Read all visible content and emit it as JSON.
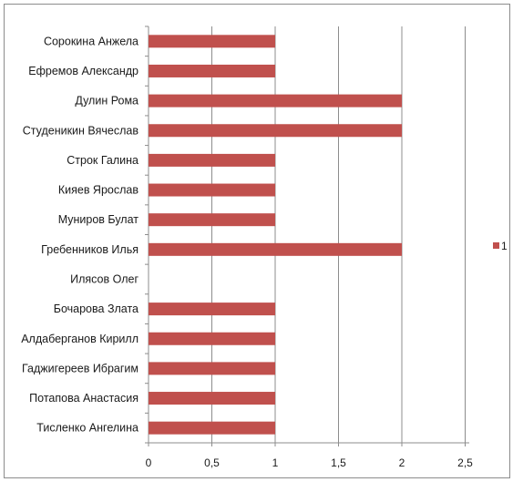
{
  "title_fragment": "",
  "chart_data": {
    "type": "bar",
    "orientation": "horizontal",
    "categories": [
      "Сорокина Анжела",
      "Ефремов Александр",
      "Дулин Рома",
      "Студеникин Вячеслав",
      "Строк Галина",
      "Кияев Ярослав",
      "Муниров Булат",
      "Гребенников Илья",
      "Илясов Олег",
      "Бочарова Злата",
      "Алдаберганов Кирилл",
      "Гаджигереев Ибрагим",
      "Потапова Анастасия",
      "Тисленко Ангелина"
    ],
    "series": [
      {
        "name": "1",
        "values": [
          1,
          1,
          2,
          2,
          1,
          1,
          1,
          2,
          0,
          1,
          1,
          1,
          1,
          1
        ],
        "color": "#c0504d"
      }
    ],
    "x_ticks": [
      "0",
      "0,5",
      "1",
      "1,5",
      "2",
      "2,5"
    ],
    "xlim": [
      0,
      2.5
    ],
    "grid": "vertical",
    "legend_position": "right"
  }
}
